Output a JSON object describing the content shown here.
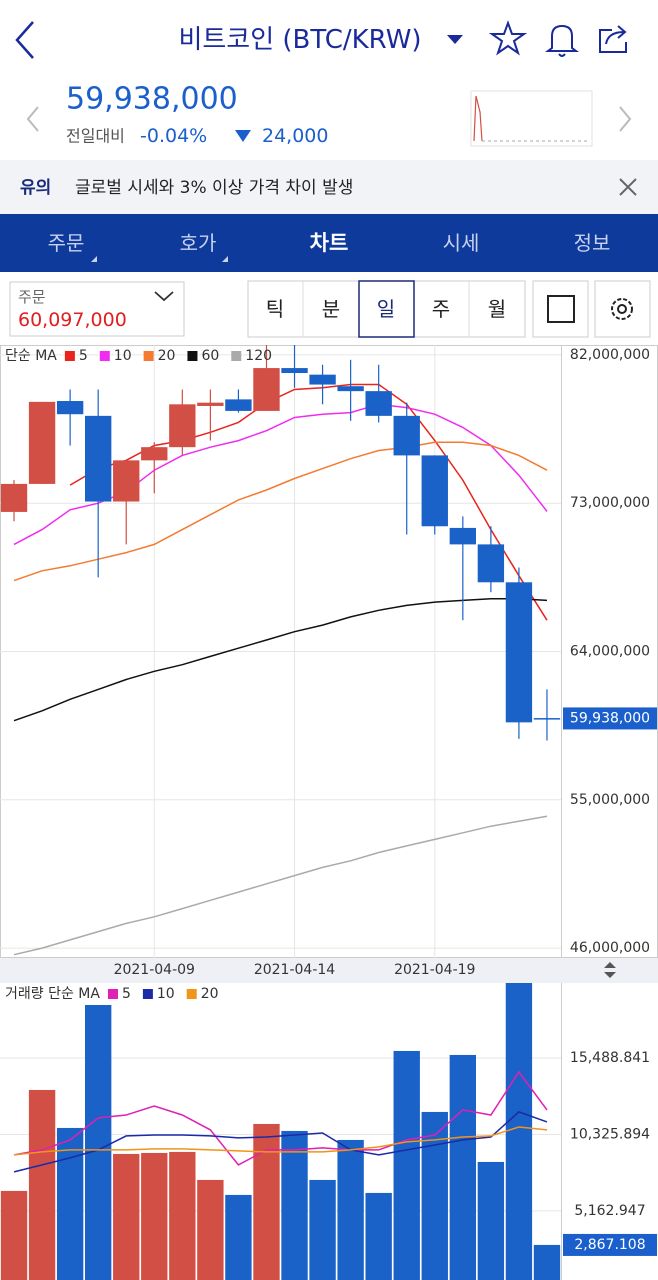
{
  "header": {
    "title": "비트코인 (BTC/KRW)"
  },
  "price": {
    "value": "59,938,000",
    "change_label": "전일대비",
    "change_pct": "-0.04%",
    "change_abs": "24,000"
  },
  "notice": {
    "label": "유의",
    "text": "글로벌 시세와 3% 이상 가격 차이 발생"
  },
  "tabs": [
    "주문",
    "호가",
    "차트",
    "시세",
    "정보"
  ],
  "order_box": {
    "label": "주문",
    "price": "60,097,000"
  },
  "periods": [
    "틱",
    "분",
    "일",
    "주",
    "월"
  ],
  "chart_data": [
    {
      "type": "candlestick",
      "legend_title": "단순 MA",
      "categories": [
        null,
        null,
        null,
        null,
        null,
        "2021-04-09",
        null,
        null,
        null,
        null,
        "2021-04-14",
        null,
        null,
        null,
        null,
        "2021-04-19",
        null,
        null,
        null,
        null
      ],
      "open": [
        72470000,
        74170000,
        79200000,
        78300000,
        73100000,
        75600000,
        76400000,
        78900000,
        79300000,
        78600000,
        81200000,
        80800000,
        80100000,
        79800000,
        78300000,
        75900000,
        71500000,
        70500000,
        68200000,
        59960000
      ],
      "high": [
        74400000,
        79150000,
        79900000,
        79900000,
        75600000,
        76700000,
        79900000,
        79900000,
        79900000,
        82600000,
        82600000,
        81400000,
        81700000,
        81400000,
        79100000,
        75900000,
        72200000,
        71600000,
        69100000,
        61700000
      ],
      "low": [
        71900000,
        74170000,
        76500000,
        68500000,
        70500000,
        73600000,
        75900000,
        76800000,
        78500000,
        78600000,
        80000000,
        79000000,
        78000000,
        77900000,
        71100000,
        71100000,
        65900000,
        67600000,
        58700000,
        58600000
      ],
      "close": [
        74170000,
        79150000,
        78400000,
        73100000,
        75600000,
        76400000,
        79000000,
        79100000,
        78600000,
        81200000,
        80900000,
        80200000,
        79800000,
        78300000,
        75900000,
        71600000,
        70500000,
        68200000,
        59700000,
        59938000
      ],
      "up_color": "#d24f45",
      "down_color": "#1a62c8",
      "series": [
        {
          "name": "5",
          "color": "#e8241c",
          "values": [
            null,
            null,
            74100000,
            75100000,
            75600000,
            76500000,
            76800000,
            77300000,
            77900000,
            79100000,
            79900000,
            80000000,
            80200000,
            80200000,
            79000000,
            76800000,
            74400000,
            71400000,
            68600000,
            65900000
          ]
        },
        {
          "name": "10",
          "color": "#f02cf0",
          "values": [
            70500000,
            71400000,
            72600000,
            73000000,
            73700000,
            75000000,
            75900000,
            76400000,
            76800000,
            77400000,
            78200000,
            78400000,
            78500000,
            79000000,
            78800000,
            78400000,
            77600000,
            76500000,
            74700000,
            72500000
          ]
        },
        {
          "name": "20",
          "color": "#f57a30",
          "values": [
            68300000,
            68900000,
            69200000,
            69600000,
            70000000,
            70500000,
            71400000,
            72300000,
            73200000,
            73800000,
            74500000,
            75100000,
            75700000,
            76200000,
            76400000,
            76700000,
            76700000,
            76500000,
            75900000,
            75000000
          ]
        },
        {
          "name": "60",
          "color": "#111111",
          "values": [
            59800000,
            60400000,
            61100000,
            61700000,
            62300000,
            62800000,
            63200000,
            63700000,
            64200000,
            64700000,
            65200000,
            65600000,
            66100000,
            66500000,
            66800000,
            67000000,
            67100000,
            67200000,
            67200000,
            67100000
          ]
        },
        {
          "name": "120",
          "color": "#aaaaaa",
          "values": [
            45600000,
            46000000,
            46500000,
            47000000,
            47500000,
            47900000,
            48400000,
            48900000,
            49400000,
            49900000,
            50400000,
            50900000,
            51300000,
            51800000,
            52200000,
            52600000,
            53000000,
            53400000,
            53700000,
            54000000
          ]
        }
      ],
      "ylim": [
        45400000,
        82600000
      ],
      "yticks": [
        {
          "value": 46000000,
          "label": "46,000,000"
        },
        {
          "value": 55000000,
          "label": "55,000,000"
        },
        {
          "value": 64000000,
          "label": "64,000,000"
        },
        {
          "value": 73000000,
          "label": "73,000,000"
        },
        {
          "value": 82000000,
          "label": "82,000,000"
        }
      ],
      "last_price": {
        "value": 59938000,
        "label": "59,938,000"
      },
      "grid": true
    },
    {
      "type": "bar",
      "legend_title": "거래량 단순 MA",
      "values": [
        6513,
        13329,
        10765,
        19066,
        9010,
        9077,
        9145,
        7255,
        6243,
        11034,
        10562,
        7255,
        9955,
        6378,
        15962,
        11845,
        15692,
        8470,
        21000,
        2867.108
      ],
      "series": [
        {
          "name": "5",
          "color": "#e01fb4",
          "values": [
            8942,
            9280,
            9955,
            11440,
            11642,
            12249,
            11642,
            10630,
            8268,
            9280,
            9280,
            9415,
            9280,
            9280,
            9955,
            10292,
            11980,
            11642,
            14544,
            11980
          ]
        },
        {
          "name": "10",
          "color": "#1a2aa8",
          "values": [
            7795,
            8268,
            8740,
            9280,
            10225,
            10292,
            10292,
            10225,
            10090,
            10157,
            10292,
            10427,
            9280,
            8942,
            9280,
            9617,
            9955,
            10157,
            11845,
            11170
          ]
        },
        {
          "name": "20",
          "color": "#f0941a",
          "values": [
            8942,
            9145,
            9280,
            9280,
            9280,
            9348,
            9348,
            9280,
            9212,
            9145,
            9145,
            9145,
            9280,
            9482,
            9820,
            9955,
            10157,
            10225,
            10832,
            10630
          ]
        }
      ],
      "ylim": [
        500,
        20550
      ],
      "yticks": [
        {
          "value": 5162.947,
          "label": "5,162.947"
        },
        {
          "value": 10325.894,
          "label": "10,325.894"
        },
        {
          "value": 15488.841,
          "label": "15,488.841"
        }
      ],
      "last_value": {
        "value": 2867.108,
        "label": "2,867.108"
      },
      "grid": true
    }
  ]
}
